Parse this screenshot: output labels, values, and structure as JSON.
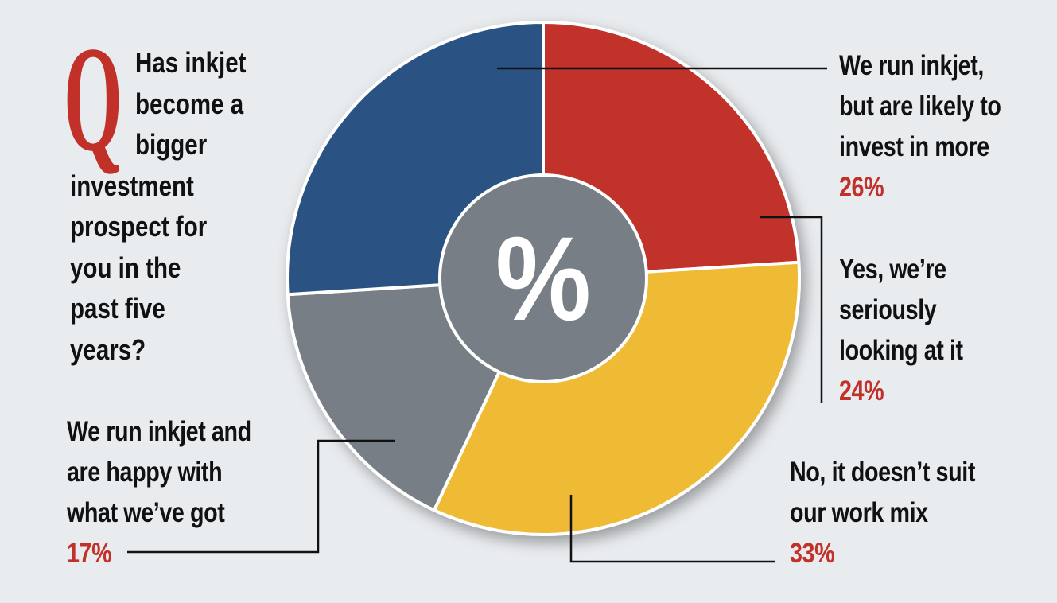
{
  "question": {
    "letter": "Q",
    "lines": [
      "Has inkjet",
      "become a",
      "bigger",
      "investment",
      "prospect for",
      "you in the",
      "past five",
      "years?"
    ]
  },
  "center_symbol": "%",
  "chart_data": {
    "type": "pie",
    "donut": true,
    "title": "Has inkjet become a bigger investment prospect for you in the past five years?",
    "slices": [
      {
        "label": "Yes, we're seriously looking at it",
        "value": 24,
        "value_label": "24%",
        "color": "#c1312a"
      },
      {
        "label": "No, it doesn't suit our work mix",
        "value": 33,
        "value_label": "33%",
        "color": "#efbb35"
      },
      {
        "label": "We run inkjet and are happy with what we've got",
        "value": 17,
        "value_label": "17%",
        "color": "#787e86"
      },
      {
        "label": "We run inkjet, but are likely to invest in more",
        "value": 26,
        "value_label": "26%",
        "color": "#2b5384"
      }
    ],
    "label_lines": {
      "a": [
        "We run inkjet,",
        "but are likely to",
        "invest in more"
      ],
      "b": [
        "Yes, we’re",
        "seriously",
        "looking at it"
      ],
      "c": [
        "No, it doesn’t suit",
        "our work mix"
      ],
      "d": [
        "We run inkjet and",
        "are happy with",
        "what we’ve got"
      ]
    }
  }
}
